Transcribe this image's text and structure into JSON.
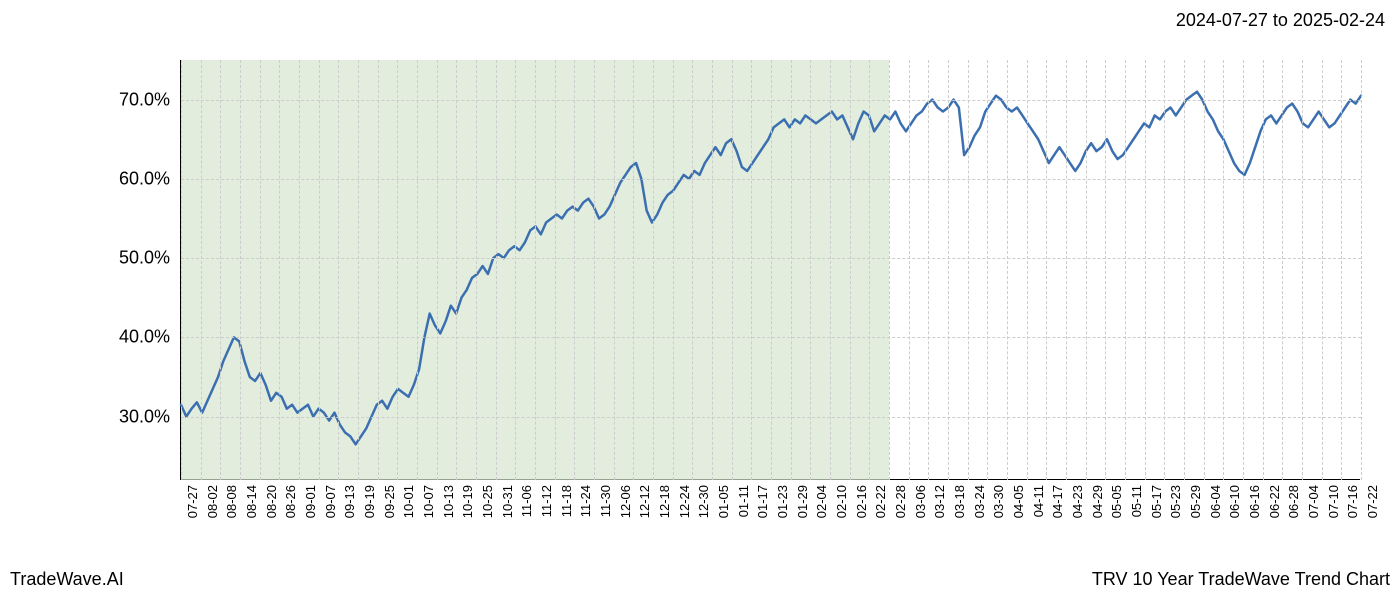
{
  "header": {
    "date_range": "2024-07-27 to 2025-02-24"
  },
  "footer": {
    "left": "TradeWave.AI",
    "right": "TRV 10 Year TradeWave Trend Chart"
  },
  "chart": {
    "type": "line",
    "background_color": "#ffffff",
    "grid_color": "#cccccc",
    "line_color": "#3b6fb0",
    "line_width": 2.5,
    "highlight_color": "#d5e5d0",
    "highlight_opacity": 0.7,
    "y_axis": {
      "min": 22,
      "max": 75,
      "ticks": [
        30.0,
        40.0,
        50.0,
        60.0,
        70.0
      ],
      "tick_labels": [
        "30.0%",
        "40.0%",
        "50.0%",
        "60.0%",
        "70.0%"
      ],
      "label_fontsize": 18
    },
    "x_axis": {
      "ticks": [
        "07-27",
        "08-02",
        "08-08",
        "08-14",
        "08-20",
        "08-26",
        "09-01",
        "09-07",
        "09-13",
        "09-19",
        "09-25",
        "10-01",
        "10-07",
        "10-13",
        "10-19",
        "10-25",
        "10-31",
        "11-06",
        "11-12",
        "11-18",
        "11-24",
        "11-30",
        "12-06",
        "12-12",
        "12-18",
        "12-24",
        "12-30",
        "01-05",
        "01-11",
        "01-17",
        "01-23",
        "01-29",
        "02-04",
        "02-10",
        "02-16",
        "02-22",
        "02-28",
        "03-06",
        "03-12",
        "03-18",
        "03-24",
        "03-30",
        "04-05",
        "04-11",
        "04-17",
        "04-23",
        "04-29",
        "05-05",
        "05-11",
        "05-17",
        "05-23",
        "05-29",
        "06-04",
        "06-10",
        "06-16",
        "06-22",
        "06-28",
        "07-04",
        "07-10",
        "07-16",
        "07-22"
      ],
      "label_fontsize": 13
    },
    "highlight_region": {
      "start_index": 0,
      "end_index": 36
    },
    "series": [
      31.5,
      30.0,
      31.0,
      31.8,
      30.5,
      32.0,
      33.5,
      35.0,
      37.0,
      38.5,
      40.0,
      39.5,
      37.0,
      35.0,
      34.5,
      35.5,
      34.0,
      32.0,
      33.0,
      32.5,
      31.0,
      31.5,
      30.5,
      31.0,
      31.5,
      30.0,
      31.0,
      30.5,
      29.5,
      30.5,
      29.0,
      28.0,
      27.5,
      26.5,
      27.5,
      28.5,
      30.0,
      31.5,
      32.0,
      31.0,
      32.5,
      33.5,
      33.0,
      32.5,
      34.0,
      36.0,
      40.0,
      43.0,
      41.5,
      40.5,
      42.0,
      44.0,
      43.0,
      45.0,
      46.0,
      47.5,
      48.0,
      49.0,
      48.0,
      50.0,
      50.5,
      50.0,
      51.0,
      51.5,
      51.0,
      52.0,
      53.5,
      54.0,
      53.0,
      54.5,
      55.0,
      55.5,
      55.0,
      56.0,
      56.5,
      56.0,
      57.0,
      57.5,
      56.5,
      55.0,
      55.5,
      56.5,
      58.0,
      59.5,
      60.5,
      61.5,
      62.0,
      60.0,
      56.0,
      54.5,
      55.5,
      57.0,
      58.0,
      58.5,
      59.5,
      60.5,
      60.0,
      61.0,
      60.5,
      62.0,
      63.0,
      64.0,
      63.0,
      64.5,
      65.0,
      63.5,
      61.5,
      61.0,
      62.0,
      63.0,
      64.0,
      65.0,
      66.5,
      67.0,
      67.5,
      66.5,
      67.5,
      67.0,
      68.0,
      67.5,
      67.0,
      67.5,
      68.0,
      68.5,
      67.5,
      68.0,
      66.5,
      65.0,
      67.0,
      68.5,
      68.0,
      66.0,
      67.0,
      68.0,
      67.5,
      68.5,
      67.0,
      66.0,
      67.0,
      68.0,
      68.5,
      69.5,
      70.0,
      69.0,
      68.5,
      69.0,
      70.0,
      69.0,
      63.0,
      64.0,
      65.5,
      66.5,
      68.5,
      69.5,
      70.5,
      70.0,
      69.0,
      68.5,
      69.0,
      68.0,
      67.0,
      66.0,
      65.0,
      63.5,
      62.0,
      63.0,
      64.0,
      63.0,
      62.0,
      61.0,
      62.0,
      63.5,
      64.5,
      63.5,
      64.0,
      65.0,
      63.5,
      62.5,
      63.0,
      64.0,
      65.0,
      66.0,
      67.0,
      66.5,
      68.0,
      67.5,
      68.5,
      69.0,
      68.0,
      69.0,
      70.0,
      70.5,
      71.0,
      70.0,
      68.5,
      67.5,
      66.0,
      65.0,
      63.5,
      62.0,
      61.0,
      60.5,
      62.0,
      64.0,
      66.0,
      67.5,
      68.0,
      67.0,
      68.0,
      69.0,
      69.5,
      68.5,
      67.0,
      66.5,
      67.5,
      68.5,
      67.5,
      66.5,
      67.0,
      68.0,
      69.0,
      70.0,
      69.5,
      70.5
    ]
  }
}
